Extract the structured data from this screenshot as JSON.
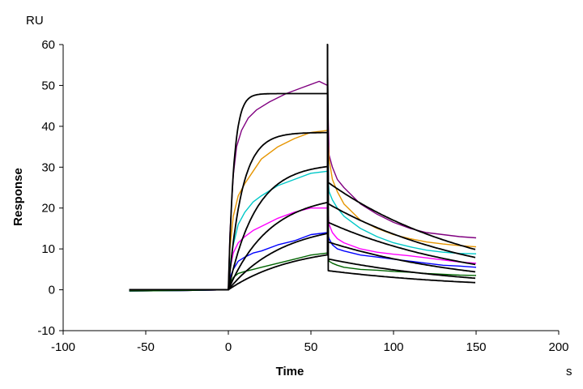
{
  "chart_data": {
    "type": "line",
    "xlabel": "Time",
    "ylabel": "Response",
    "x_unit": "s",
    "y_unit": "RU",
    "xlim": [
      -100,
      200
    ],
    "ylim": [
      -10,
      60
    ],
    "x_ticks": [
      -100,
      -50,
      0,
      50,
      100,
      150,
      200
    ],
    "y_ticks": [
      -10,
      0,
      10,
      20,
      30,
      40,
      50,
      60
    ],
    "grid": false,
    "series": [
      {
        "color": "#800080",
        "style": "measured",
        "x": [
          -60,
          -30,
          0,
          1,
          3,
          5,
          8,
          12,
          17,
          25,
          35,
          45,
          55,
          60,
          61,
          63,
          66,
          70,
          80,
          90,
          100,
          110,
          120,
          130,
          140,
          150
        ],
        "y": [
          -0.3,
          -0.2,
          0,
          14,
          28,
          35,
          39,
          42,
          44,
          46,
          48,
          49.5,
          51,
          50,
          33,
          30,
          27,
          25,
          21,
          18.5,
          16.5,
          15,
          14,
          13.5,
          13,
          12.7
        ]
      },
      {
        "color": "#e69500",
        "style": "measured",
        "x": [
          -60,
          -30,
          0,
          1,
          3,
          6,
          10,
          15,
          20,
          30,
          40,
          50,
          60,
          61,
          63,
          66,
          70,
          80,
          90,
          100,
          110,
          120,
          130,
          140,
          150
        ],
        "y": [
          -0.3,
          -0.2,
          0,
          10,
          18,
          23,
          26,
          29,
          32,
          35,
          37,
          38.5,
          39,
          32,
          27,
          24,
          21,
          17,
          15,
          13.5,
          12.5,
          11.7,
          11.2,
          10.8,
          10.5
        ]
      },
      {
        "color": "#00c8c8",
        "style": "measured",
        "x": [
          -60,
          -30,
          0,
          1,
          3,
          6,
          10,
          15,
          20,
          30,
          40,
          50,
          60,
          61,
          63,
          66,
          70,
          80,
          90,
          100,
          110,
          120,
          130,
          140,
          150
        ],
        "y": [
          -0.3,
          -0.2,
          0,
          6,
          11,
          16,
          19,
          21.5,
          23,
          25.5,
          27,
          28.5,
          29,
          24,
          22,
          20,
          18,
          15,
          13,
          11.5,
          10.5,
          9.7,
          9.2,
          8.9,
          8.8
        ]
      },
      {
        "color": "#ff00ff",
        "style": "measured",
        "x": [
          -60,
          -30,
          0,
          1,
          3,
          6,
          10,
          15,
          20,
          30,
          40,
          50,
          60,
          61,
          63,
          66,
          70,
          80,
          90,
          100,
          110,
          120,
          130,
          140,
          150
        ],
        "y": [
          -0.3,
          -0.2,
          0,
          5,
          9,
          11.5,
          13,
          14.5,
          15.5,
          17.5,
          19,
          20,
          20,
          16,
          14,
          12.5,
          11.5,
          10,
          9.2,
          8.7,
          8.3,
          7.8,
          7.3,
          6.8,
          6.5
        ]
      },
      {
        "color": "#0000ff",
        "style": "measured",
        "x": [
          -60,
          -30,
          0,
          1,
          3,
          6,
          10,
          15,
          20,
          30,
          40,
          50,
          60,
          61,
          63,
          66,
          70,
          80,
          90,
          100,
          110,
          120,
          130,
          140,
          150
        ],
        "y": [
          -0.3,
          -0.2,
          0,
          3,
          5,
          7,
          8,
          9,
          9.5,
          11,
          12,
          13.5,
          14,
          12.5,
          11,
          10,
          9.5,
          8.5,
          8,
          7.5,
          7,
          6.5,
          6,
          5.8,
          5.5
        ]
      },
      {
        "color": "#006400",
        "style": "measured",
        "x": [
          -60,
          -30,
          0,
          1,
          3,
          6,
          10,
          15,
          20,
          30,
          40,
          50,
          60,
          61,
          63,
          66,
          70,
          80,
          90,
          100,
          110,
          120,
          130,
          140,
          150
        ],
        "y": [
          -0.3,
          -0.2,
          0,
          1.5,
          3,
          4,
          4.5,
          5,
          5.5,
          6.5,
          7.5,
          8.5,
          9,
          7,
          6.5,
          6,
          5.5,
          5,
          4.8,
          4.5,
          4.3,
          4,
          3.8,
          3.6,
          3.5
        ]
      },
      {
        "color": "#000000",
        "style": "fit",
        "fit": {
          "Rmax": 48,
          "kobs": 0.3,
          "kd": 0.011,
          "t0": 60,
          "t1": 150,
          "smax": 60
        }
      },
      {
        "color": "#000000",
        "style": "fit",
        "fit": {
          "Rmax": 38.5,
          "kobs": 0.12,
          "kd": 0.011,
          "t0": 60,
          "t1": 150,
          "smax": 60
        }
      },
      {
        "color": "#000000",
        "style": "fit",
        "fit": {
          "Rmax": 31,
          "kobs": 0.06,
          "kd": 0.011,
          "t0": 60,
          "t1": 150,
          "smax": 60
        }
      },
      {
        "color": "#000000",
        "style": "fit",
        "fit": {
          "Rmax": 23.5,
          "kobs": 0.04,
          "kd": 0.011,
          "t0": 60,
          "t1": 150,
          "smax": 60
        }
      },
      {
        "color": "#000000",
        "style": "fit",
        "fit": {
          "Rmax": 16.5,
          "kobs": 0.03,
          "kd": 0.011,
          "t0": 60,
          "t1": 150,
          "smax": 60
        }
      },
      {
        "color": "#000000",
        "style": "fit",
        "fit": {
          "Rmax": 11,
          "kobs": 0.025,
          "kd": 0.011,
          "t0": 60,
          "t1": 150,
          "smax": 60
        }
      }
    ]
  }
}
